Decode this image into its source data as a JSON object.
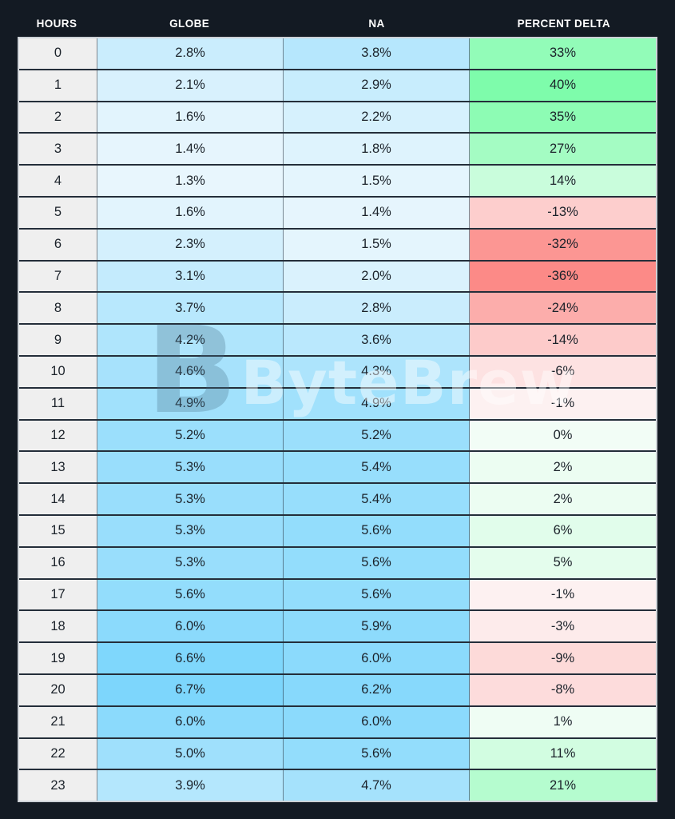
{
  "header": {
    "columns": [
      "HOURS",
      "GLOBE",
      "NA",
      "PERCENT DELTA"
    ]
  },
  "watermark": {
    "logo": "B",
    "text": "ByteBrew"
  },
  "colors": {
    "page_background": "#131a23",
    "header_text": "#ffffff",
    "hours_cell_background": "#efefef",
    "cell_text": "#1b222a",
    "blue_scale_low": "#e8f6fd",
    "blue_scale_high": "#7dd6fc",
    "green_scale_low": "#f2fdf6",
    "green_scale_high": "#7efcab",
    "red_scale_low": "#fdf4f4",
    "red_scale_high": "#fc8a87"
  },
  "chart_data": {
    "type": "heatmap",
    "title": "",
    "xlabel": "HOURS",
    "value_unit": "%",
    "categories": [
      0,
      1,
      2,
      3,
      4,
      5,
      6,
      7,
      8,
      9,
      10,
      11,
      12,
      13,
      14,
      15,
      16,
      17,
      18,
      19,
      20,
      21,
      22,
      23
    ],
    "series": [
      {
        "name": "GLOBE",
        "values": [
          2.8,
          2.1,
          1.6,
          1.4,
          1.3,
          1.6,
          2.3,
          3.1,
          3.7,
          4.2,
          4.6,
          4.9,
          5.2,
          5.3,
          5.3,
          5.3,
          5.3,
          5.6,
          6.0,
          6.6,
          6.7,
          6.0,
          5.0,
          3.9
        ]
      },
      {
        "name": "NA",
        "values": [
          3.8,
          2.9,
          2.2,
          1.8,
          1.5,
          1.4,
          1.5,
          2.0,
          2.8,
          3.6,
          4.3,
          4.9,
          5.2,
          5.4,
          5.4,
          5.6,
          5.6,
          5.6,
          5.9,
          6.0,
          6.2,
          6.0,
          5.6,
          4.7
        ]
      },
      {
        "name": "PERCENT DELTA",
        "values": [
          33,
          40,
          35,
          27,
          14,
          -13,
          -32,
          -36,
          -24,
          -14,
          -6,
          -1,
          0,
          2,
          2,
          6,
          5,
          -1,
          -3,
          -9,
          -8,
          1,
          11,
          21
        ]
      }
    ],
    "layout_hints": {
      "blue_scale_domain": [
        1.3,
        6.7
      ],
      "delta_green_domain": [
        0,
        40
      ],
      "delta_red_domain": [
        0,
        -36
      ],
      "grid": true,
      "legend": false
    }
  }
}
